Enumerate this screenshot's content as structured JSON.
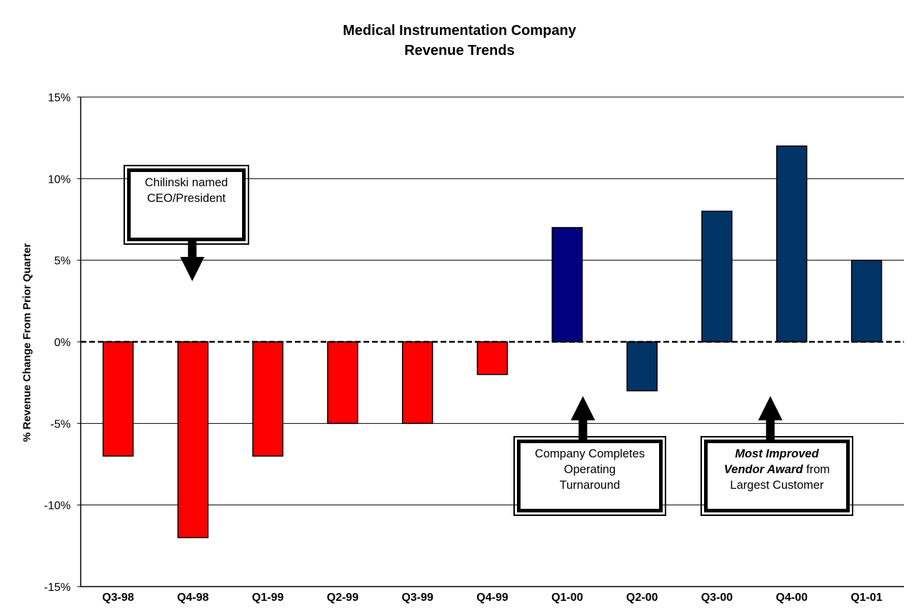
{
  "chart_data": {
    "type": "bar",
    "title": "Medical Instrumentation Company",
    "subtitle": "Revenue Trends",
    "xlabel": "",
    "ylabel": "% Revenue Change From Prior Quarter",
    "categories": [
      "Q3-98",
      "Q4-98",
      "Q1-99",
      "Q2-99",
      "Q3-99",
      "Q4-99",
      "Q1-00",
      "Q2-00",
      "Q3-00",
      "Q4-00",
      "Q1-01"
    ],
    "values": [
      -7,
      -12,
      -7,
      -5,
      -5,
      -2,
      7,
      -3,
      8,
      12,
      5
    ],
    "ylim": [
      -15,
      15
    ],
    "yticks": [
      15,
      10,
      5,
      0,
      -5,
      -10,
      -15
    ],
    "ytick_labels": [
      "15%",
      "10%",
      "5%",
      "0%",
      "-5%",
      "-10%",
      "-15%"
    ],
    "grid": true,
    "colors": {
      "negative_early": "#ff0000",
      "q1_00": "#000080",
      "later": "#003366",
      "zero_line": "#000000"
    },
    "annotations": [
      {
        "text_lines": [
          "Chilinski named",
          "CEO/President"
        ],
        "points_to": "Q4-98"
      },
      {
        "text_lines": [
          "Company Completes",
          "Operating",
          "Turnaround"
        ],
        "points_to": "Q1-00"
      },
      {
        "text_lines": [
          "Most Improved",
          "Vendor Award from",
          "Largest Customer"
        ],
        "emphasis": "Most Improved Vendor Award",
        "points_to": "Q4-00"
      }
    ]
  },
  "callouts": {
    "ceo": {
      "line1": "Chilinski named",
      "line2": "CEO/President"
    },
    "turnaround": {
      "line1": "Company Completes",
      "line2": "Operating",
      "line3": "Turnaround"
    },
    "award": {
      "bold1": "Most Improved",
      "bold2": "Vendor Award",
      "plain2": "from",
      "line3": "Largest Customer"
    }
  }
}
